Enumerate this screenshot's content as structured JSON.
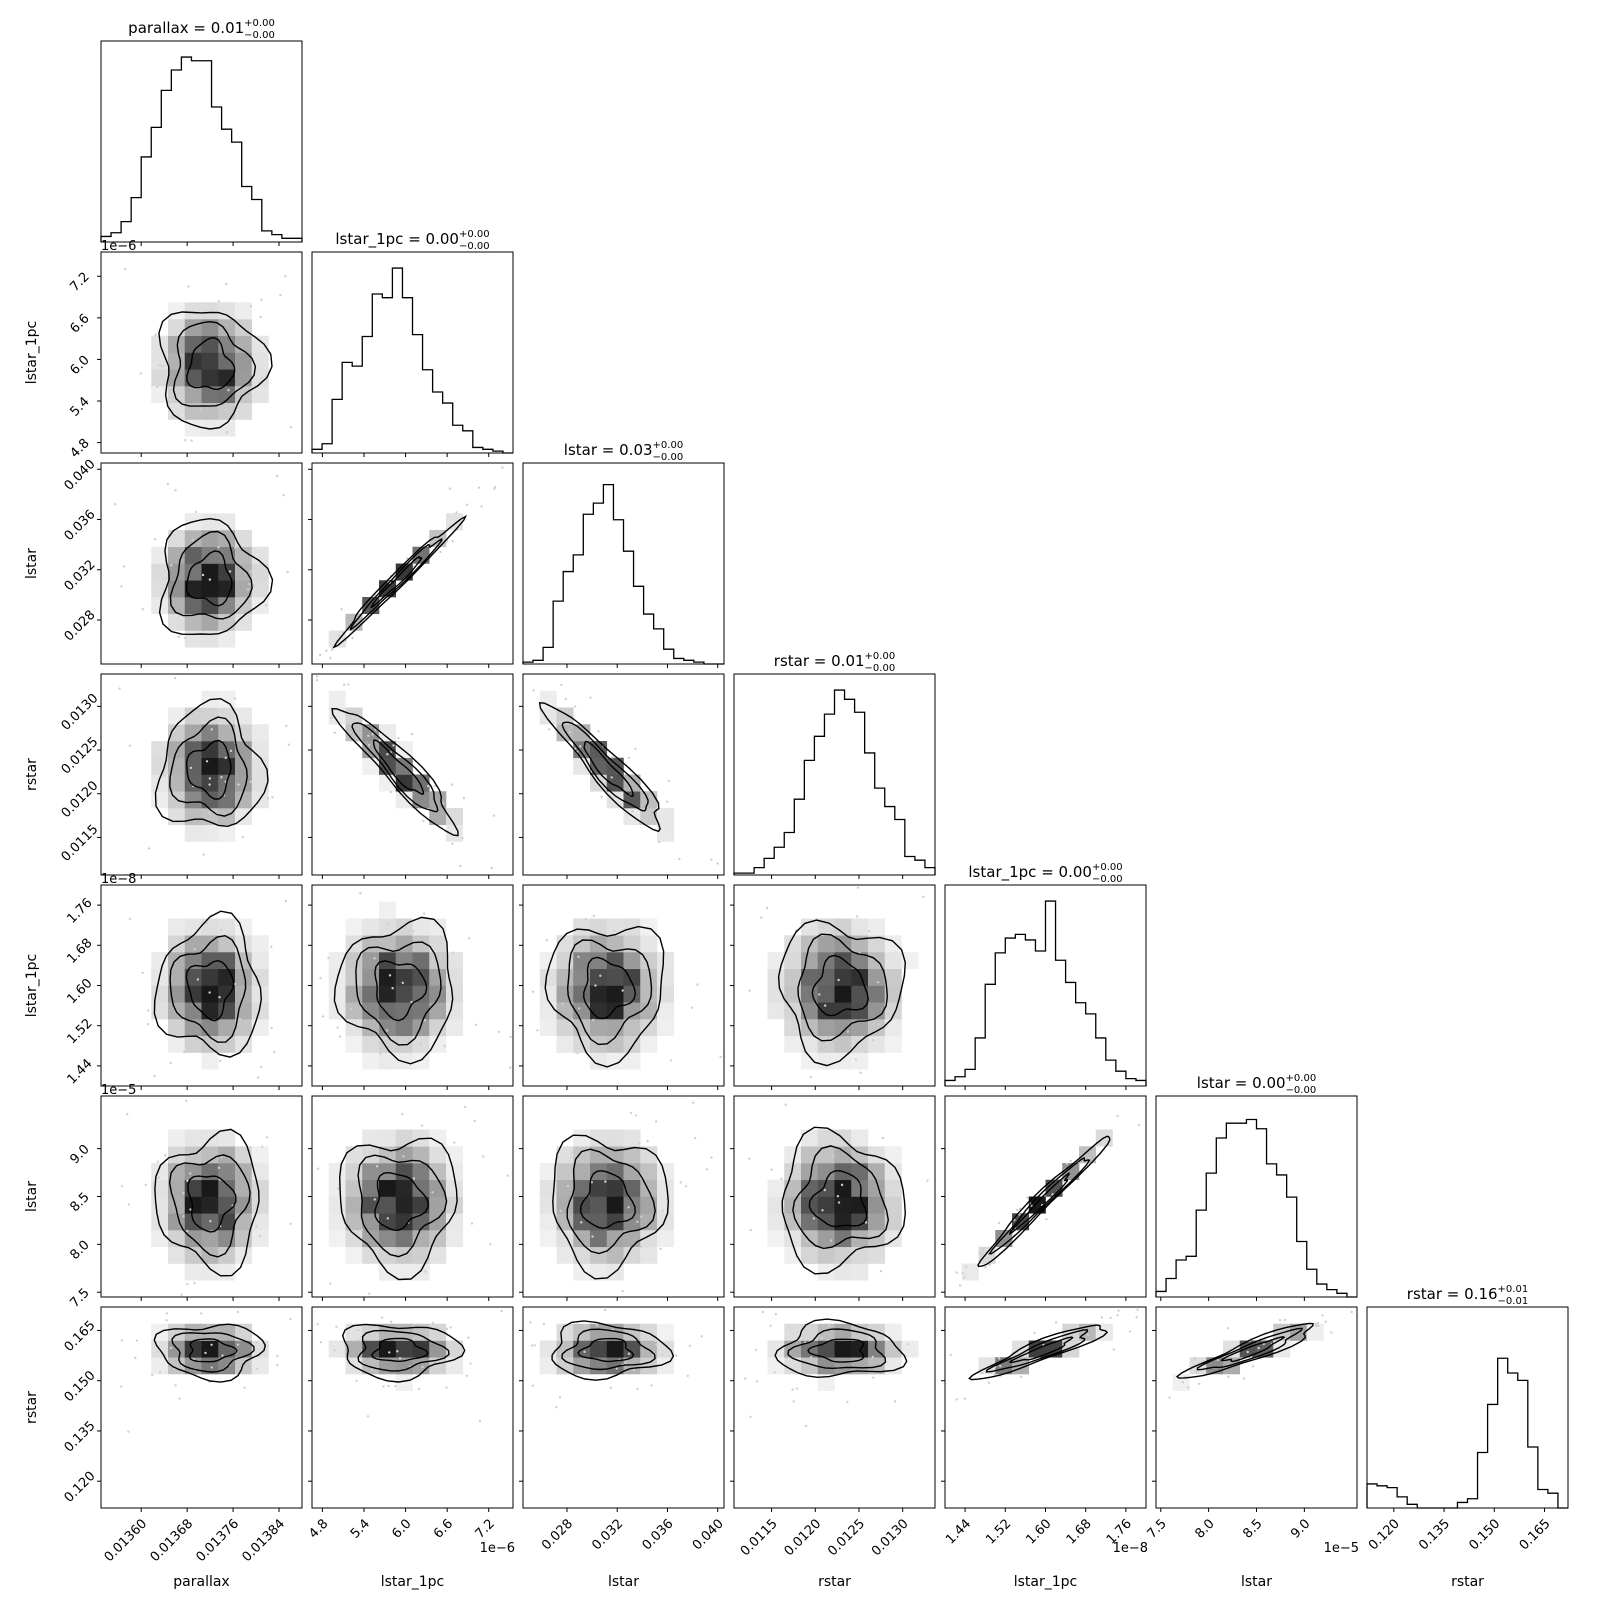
{
  "chart_data": {
    "type": "corner",
    "variables": [
      {
        "name": "parallax",
        "title_value": "0.01",
        "err_plus": "+0.00",
        "err_minus": "−0.00",
        "range": [
          0.01353,
          0.01388
        ],
        "ticks": [
          0.0136,
          0.01368,
          0.01376,
          0.01384
        ],
        "tick_labels": [
          "0.01360",
          "0.01368",
          "0.01376",
          "0.01384"
        ],
        "offset_label": "",
        "center": 0.01372,
        "sd": 4.5e-05,
        "hist": [
          0.03,
          0.05,
          0.11,
          0.24,
          0.46,
          0.62,
          0.82,
          0.93,
          1.0,
          0.98,
          0.98,
          0.73,
          0.61,
          0.54,
          0.3,
          0.23,
          0.06,
          0.04,
          0.02,
          0.02
        ]
      },
      {
        "name": "lstar_1pc",
        "title_value": "0.00",
        "err_plus": "+0.00",
        "err_minus": "−0.00",
        "range": [
          4.65,
          7.55
        ],
        "ticks": [
          4.8,
          5.4,
          6.0,
          6.6,
          7.2
        ],
        "tick_labels": [
          "4.8",
          "5.4",
          "6.0",
          "6.6",
          "7.2"
        ],
        "offset_label": "1e−6",
        "center": 5.9,
        "sd": 0.42,
        "hist": [
          0.02,
          0.05,
          0.29,
          0.49,
          0.47,
          0.63,
          0.86,
          0.84,
          1.0,
          0.84,
          0.64,
          0.45,
          0.33,
          0.27,
          0.15,
          0.12,
          0.03,
          0.02,
          0.01,
          0.0
        ]
      },
      {
        "name": "lstar",
        "title_value": "0.03",
        "err_plus": "+0.00",
        "err_minus": "−0.00",
        "range": [
          0.0245,
          0.0405
        ],
        "ticks": [
          0.028,
          0.032,
          0.036,
          0.04
        ],
        "tick_labels": [
          "0.028",
          "0.032",
          "0.036",
          "0.040"
        ],
        "offset_label": "",
        "center": 0.0312,
        "sd": 0.0023,
        "hist": [
          0.01,
          0.02,
          0.09,
          0.34,
          0.5,
          0.59,
          0.81,
          0.87,
          0.97,
          0.78,
          0.61,
          0.42,
          0.27,
          0.19,
          0.08,
          0.03,
          0.02,
          0.01,
          0.0,
          0.0
        ]
      },
      {
        "name": "rstar",
        "title_value": "0.01",
        "err_plus": "+0.00",
        "err_minus": "−0.00",
        "range": [
          0.01107,
          0.01337
        ],
        "ticks": [
          0.0115,
          0.012,
          0.0125,
          0.013
        ],
        "tick_labels": [
          "0.0115",
          "0.0120",
          "0.0125",
          "0.0130"
        ],
        "offset_label": "",
        "center": 0.01228,
        "sd": 0.00035,
        "hist": [
          0.01,
          0.01,
          0.04,
          0.09,
          0.15,
          0.23,
          0.41,
          0.62,
          0.75,
          0.87,
          1.0,
          0.95,
          0.88,
          0.66,
          0.47,
          0.37,
          0.3,
          0.1,
          0.08,
          0.04
        ]
      },
      {
        "name": "lstar_1pc",
        "title_value": "0.00",
        "err_plus": "+0.00",
        "err_minus": "−0.00",
        "range": [
          1.4,
          1.8
        ],
        "ticks": [
          1.44,
          1.52,
          1.6,
          1.68,
          1.76
        ],
        "tick_labels": [
          "1.44",
          "1.52",
          "1.60",
          "1.68",
          "1.76"
        ],
        "offset_label": "1e−8",
        "center": 1.595,
        "sd": 0.065,
        "hist": [
          0.03,
          0.05,
          0.09,
          0.26,
          0.55,
          0.72,
          0.8,
          0.82,
          0.79,
          0.73,
          1.0,
          0.68,
          0.56,
          0.45,
          0.39,
          0.26,
          0.14,
          0.08,
          0.04,
          0.03
        ]
      },
      {
        "name": "lstar",
        "title_value": "0.00",
        "err_plus": "+0.00",
        "err_minus": "−0.00",
        "range": [
          7.45,
          9.55
        ],
        "ticks": [
          7.5,
          8.0,
          8.5,
          9.0
        ],
        "tick_labels": [
          "7.5",
          "8.0",
          "8.5",
          "9.0"
        ],
        "offset_label": "1e−5",
        "center": 8.45,
        "sd": 0.34,
        "hist": [
          0.03,
          0.1,
          0.2,
          0.22,
          0.47,
          0.67,
          0.86,
          0.94,
          0.94,
          0.96,
          0.91,
          0.72,
          0.66,
          0.54,
          0.3,
          0.15,
          0.07,
          0.04,
          0.02,
          0.0
        ]
      },
      {
        "name": "rstar",
        "title_value": "0.16",
        "err_plus": "+0.01",
        "err_minus": "−0.01",
        "range": [
          0.112,
          0.172
        ],
        "ticks": [
          0.12,
          0.135,
          0.15,
          0.165
        ],
        "tick_labels": [
          "0.120",
          "0.135",
          "0.150",
          "0.165"
        ],
        "offset_label": "",
        "center": 0.159,
        "sd": 0.004,
        "hist": [
          0.13,
          0.12,
          0.11,
          0.06,
          0.02,
          0.0,
          0.0,
          0.0,
          0.0,
          0.03,
          0.05,
          0.3,
          0.56,
          0.81,
          0.73,
          0.69,
          0.33,
          0.1,
          0.08,
          0.0
        ]
      }
    ]
  }
}
